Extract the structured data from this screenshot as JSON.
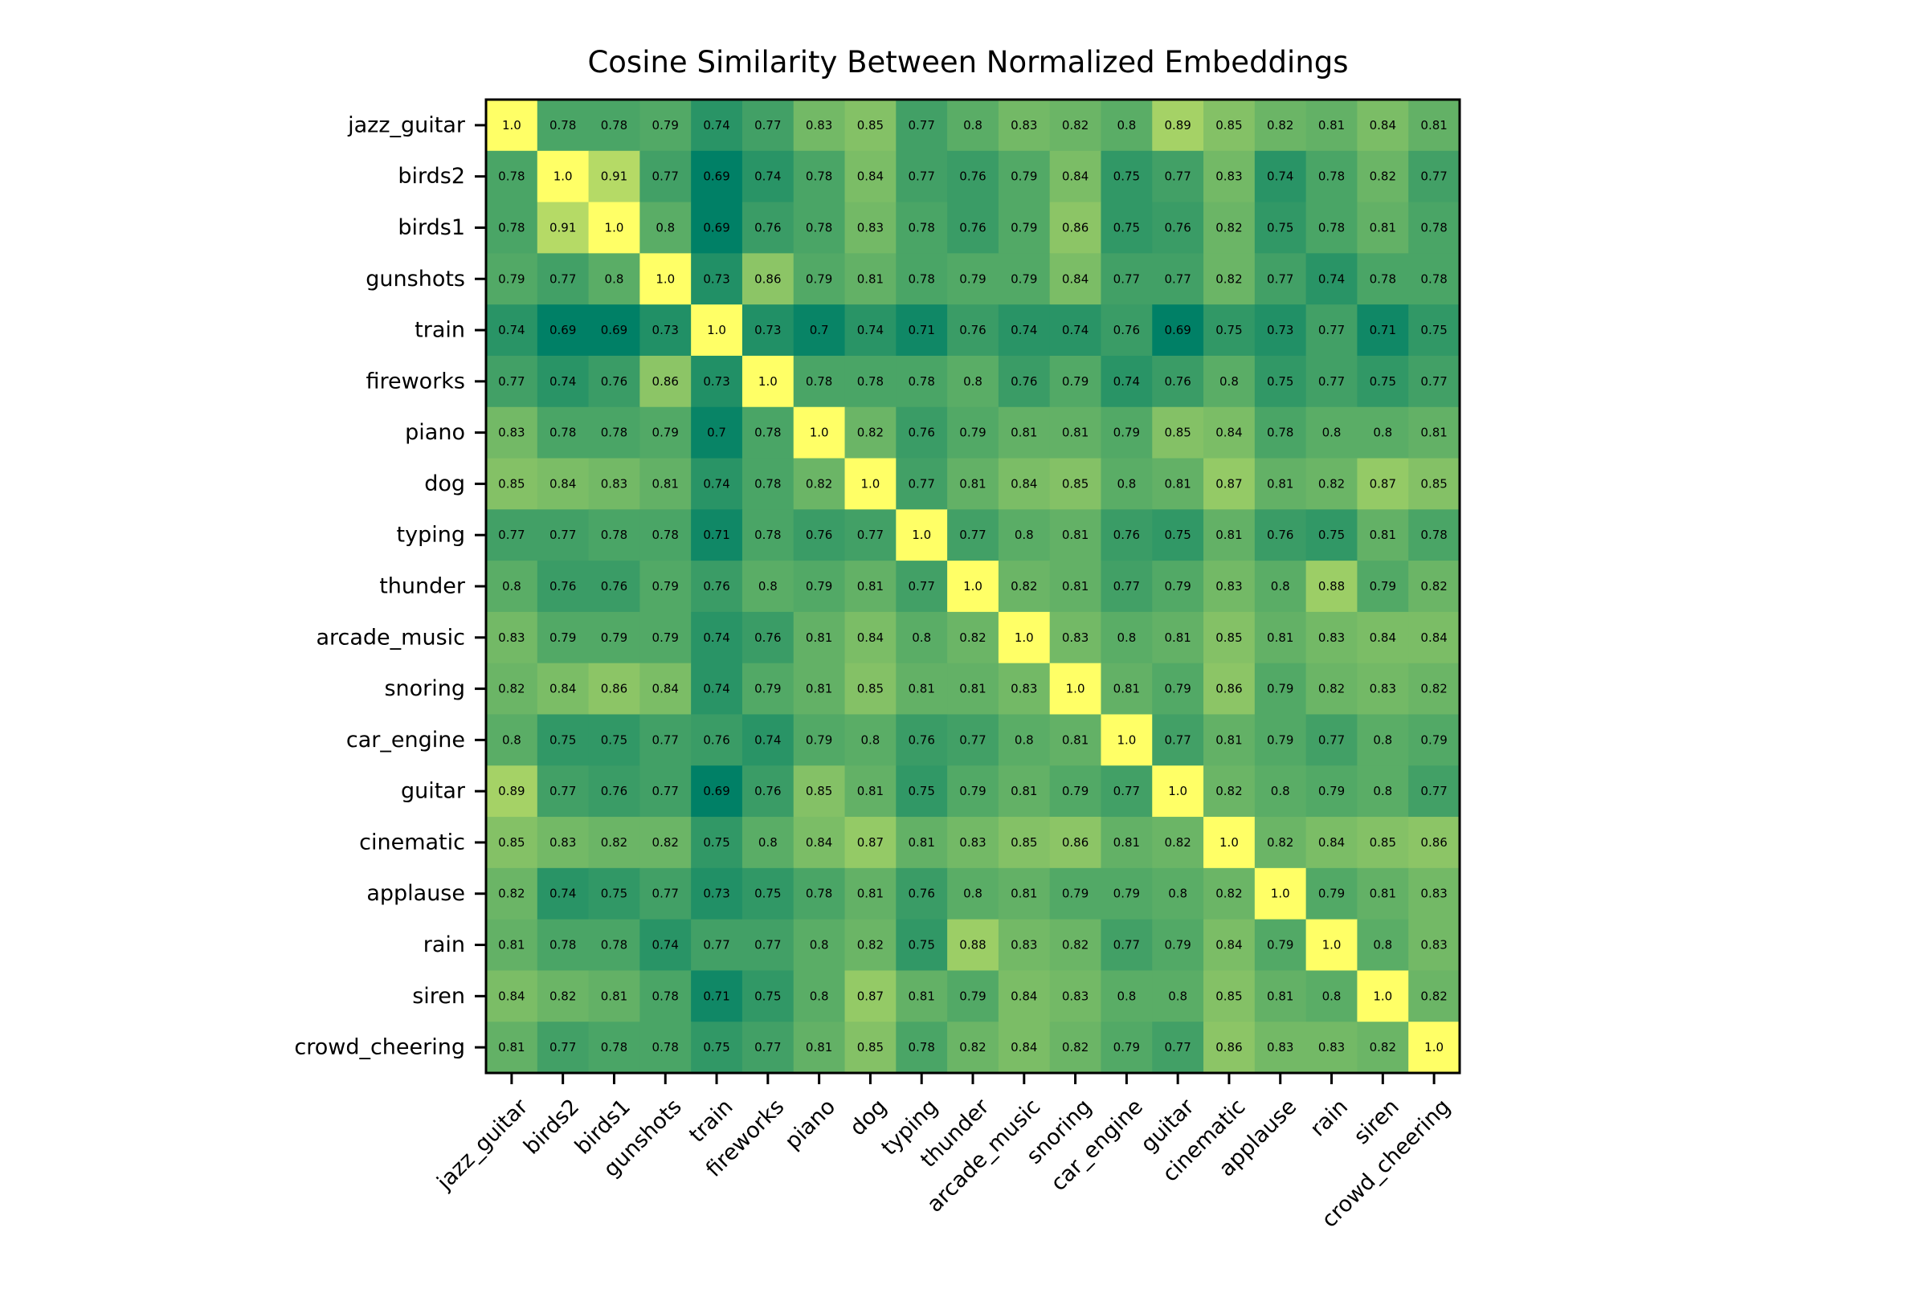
{
  "chart_data": {
    "type": "heatmap",
    "title": "Cosine Similarity Between Normalized Embeddings",
    "xlabel": "",
    "ylabel": "",
    "colormap": "summer",
    "color_range": [
      0.69,
      1.0
    ],
    "grid": false,
    "legend": "none",
    "categories": [
      "jazz_guitar",
      "birds2",
      "birds1",
      "gunshots",
      "train",
      "fireworks",
      "piano",
      "dog",
      "typing",
      "thunder",
      "arcade_music",
      "snoring",
      "car_engine",
      "guitar",
      "cinematic",
      "applause",
      "rain",
      "siren",
      "crowd_cheering"
    ],
    "values": [
      [
        "1.0",
        "0.78",
        "0.78",
        "0.79",
        "0.74",
        "0.77",
        "0.83",
        "0.85",
        "0.77",
        "0.8",
        "0.83",
        "0.82",
        "0.8",
        "0.89",
        "0.85",
        "0.82",
        "0.81",
        "0.84",
        "0.81"
      ],
      [
        "0.78",
        "1.0",
        "0.91",
        "0.77",
        "0.69",
        "0.74",
        "0.78",
        "0.84",
        "0.77",
        "0.76",
        "0.79",
        "0.84",
        "0.75",
        "0.77",
        "0.83",
        "0.74",
        "0.78",
        "0.82",
        "0.77"
      ],
      [
        "0.78",
        "0.91",
        "1.0",
        "0.8",
        "0.69",
        "0.76",
        "0.78",
        "0.83",
        "0.78",
        "0.76",
        "0.79",
        "0.86",
        "0.75",
        "0.76",
        "0.82",
        "0.75",
        "0.78",
        "0.81",
        "0.78"
      ],
      [
        "0.79",
        "0.77",
        "0.8",
        "1.0",
        "0.73",
        "0.86",
        "0.79",
        "0.81",
        "0.78",
        "0.79",
        "0.79",
        "0.84",
        "0.77",
        "0.77",
        "0.82",
        "0.77",
        "0.74",
        "0.78",
        "0.78"
      ],
      [
        "0.74",
        "0.69",
        "0.69",
        "0.73",
        "1.0",
        "0.73",
        "0.7",
        "0.74",
        "0.71",
        "0.76",
        "0.74",
        "0.74",
        "0.76",
        "0.69",
        "0.75",
        "0.73",
        "0.77",
        "0.71",
        "0.75"
      ],
      [
        "0.77",
        "0.74",
        "0.76",
        "0.86",
        "0.73",
        "1.0",
        "0.78",
        "0.78",
        "0.78",
        "0.8",
        "0.76",
        "0.79",
        "0.74",
        "0.76",
        "0.8",
        "0.75",
        "0.77",
        "0.75",
        "0.77"
      ],
      [
        "0.83",
        "0.78",
        "0.78",
        "0.79",
        "0.7",
        "0.78",
        "1.0",
        "0.82",
        "0.76",
        "0.79",
        "0.81",
        "0.81",
        "0.79",
        "0.85",
        "0.84",
        "0.78",
        "0.8",
        "0.8",
        "0.81"
      ],
      [
        "0.85",
        "0.84",
        "0.83",
        "0.81",
        "0.74",
        "0.78",
        "0.82",
        "1.0",
        "0.77",
        "0.81",
        "0.84",
        "0.85",
        "0.8",
        "0.81",
        "0.87",
        "0.81",
        "0.82",
        "0.87",
        "0.85"
      ],
      [
        "0.77",
        "0.77",
        "0.78",
        "0.78",
        "0.71",
        "0.78",
        "0.76",
        "0.77",
        "1.0",
        "0.77",
        "0.8",
        "0.81",
        "0.76",
        "0.75",
        "0.81",
        "0.76",
        "0.75",
        "0.81",
        "0.78"
      ],
      [
        "0.8",
        "0.76",
        "0.76",
        "0.79",
        "0.76",
        "0.8",
        "0.79",
        "0.81",
        "0.77",
        "1.0",
        "0.82",
        "0.81",
        "0.77",
        "0.79",
        "0.83",
        "0.8",
        "0.88",
        "0.79",
        "0.82"
      ],
      [
        "0.83",
        "0.79",
        "0.79",
        "0.79",
        "0.74",
        "0.76",
        "0.81",
        "0.84",
        "0.8",
        "0.82",
        "1.0",
        "0.83",
        "0.8",
        "0.81",
        "0.85",
        "0.81",
        "0.83",
        "0.84",
        "0.84"
      ],
      [
        "0.82",
        "0.84",
        "0.86",
        "0.84",
        "0.74",
        "0.79",
        "0.81",
        "0.85",
        "0.81",
        "0.81",
        "0.83",
        "1.0",
        "0.81",
        "0.79",
        "0.86",
        "0.79",
        "0.82",
        "0.83",
        "0.82"
      ],
      [
        "0.8",
        "0.75",
        "0.75",
        "0.77",
        "0.76",
        "0.74",
        "0.79",
        "0.8",
        "0.76",
        "0.77",
        "0.8",
        "0.81",
        "1.0",
        "0.77",
        "0.81",
        "0.79",
        "0.77",
        "0.8",
        "0.79"
      ],
      [
        "0.89",
        "0.77",
        "0.76",
        "0.77",
        "0.69",
        "0.76",
        "0.85",
        "0.81",
        "0.75",
        "0.79",
        "0.81",
        "0.79",
        "0.77",
        "1.0",
        "0.82",
        "0.8",
        "0.79",
        "0.8",
        "0.77"
      ],
      [
        "0.85",
        "0.83",
        "0.82",
        "0.82",
        "0.75",
        "0.8",
        "0.84",
        "0.87",
        "0.81",
        "0.83",
        "0.85",
        "0.86",
        "0.81",
        "0.82",
        "1.0",
        "0.82",
        "0.84",
        "0.85",
        "0.86"
      ],
      [
        "0.82",
        "0.74",
        "0.75",
        "0.77",
        "0.73",
        "0.75",
        "0.78",
        "0.81",
        "0.76",
        "0.8",
        "0.81",
        "0.79",
        "0.79",
        "0.8",
        "0.82",
        "1.0",
        "0.79",
        "0.81",
        "0.83"
      ],
      [
        "0.81",
        "0.78",
        "0.78",
        "0.74",
        "0.77",
        "0.77",
        "0.8",
        "0.82",
        "0.75",
        "0.88",
        "0.83",
        "0.82",
        "0.77",
        "0.79",
        "0.84",
        "0.79",
        "1.0",
        "0.8",
        "0.83"
      ],
      [
        "0.84",
        "0.82",
        "0.81",
        "0.78",
        "0.71",
        "0.75",
        "0.8",
        "0.87",
        "0.81",
        "0.79",
        "0.84",
        "0.83",
        "0.8",
        "0.8",
        "0.85",
        "0.81",
        "0.8",
        "1.0",
        "0.82"
      ],
      [
        "0.81",
        "0.77",
        "0.78",
        "0.78",
        "0.75",
        "0.77",
        "0.81",
        "0.85",
        "0.78",
        "0.82",
        "0.84",
        "0.82",
        "0.79",
        "0.77",
        "0.86",
        "0.83",
        "0.83",
        "0.82",
        "1.0"
      ]
    ]
  }
}
